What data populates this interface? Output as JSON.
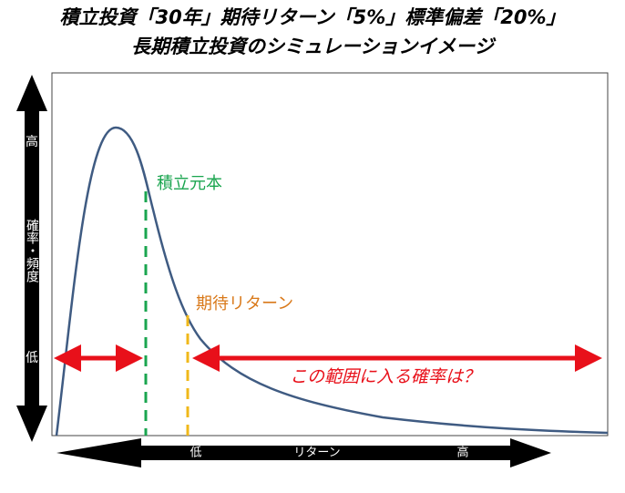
{
  "header": {
    "title": "積立投資「30年」期待リターン「5%」標準偏差「20%」",
    "subtitle": "長期積立投資のシミュレーションイメージ"
  },
  "y_axis": {
    "high": "高",
    "label": "確率・頻度",
    "low": "低"
  },
  "x_axis": {
    "low": "低",
    "label": "リターン",
    "high": "高"
  },
  "annotations": {
    "principal": "積立元本",
    "expected_return": "期待リターン",
    "range_question": "この範囲に入る確率は？"
  }
}
